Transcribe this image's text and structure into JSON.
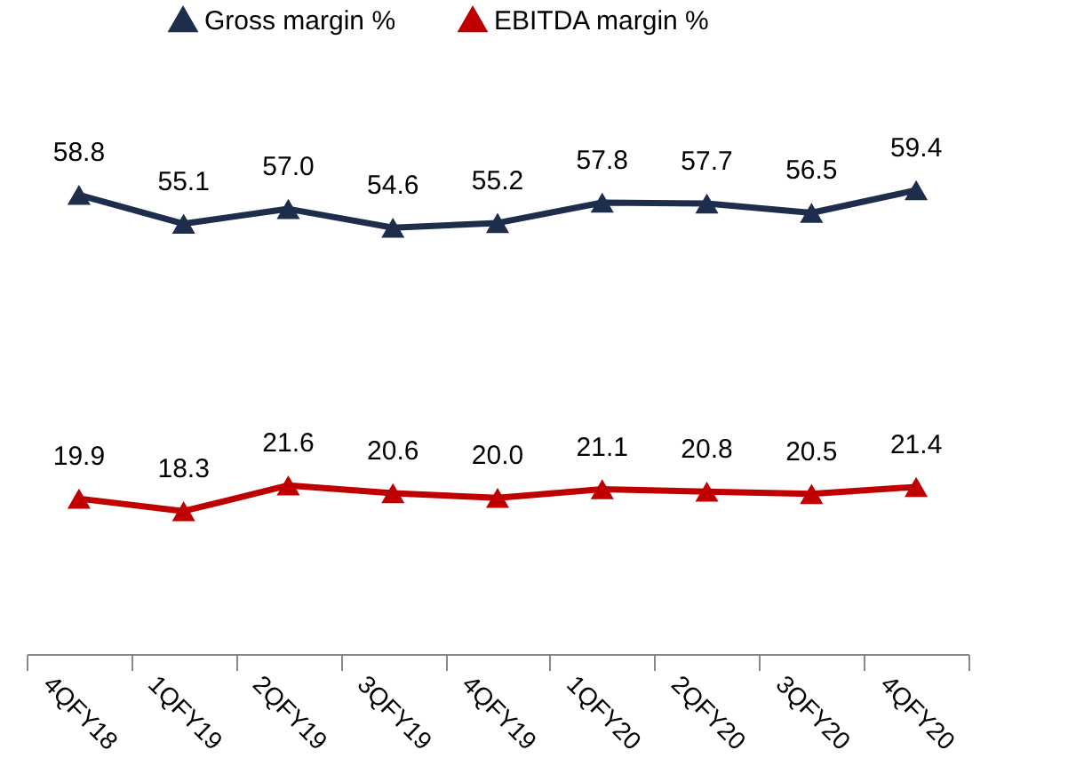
{
  "chart_data": {
    "type": "line",
    "categories": [
      "4QFY18",
      "1QFY19",
      "2QFY19",
      "3QFY19",
      "4QFY19",
      "1QFY20",
      "2QFY20",
      "3QFY20",
      "4QFY20"
    ],
    "series": [
      {
        "name": "Gross margin %",
        "color": "#1f2d4d",
        "values": [
          58.8,
          55.1,
          57.0,
          54.6,
          55.2,
          57.8,
          57.7,
          56.5,
          59.4
        ],
        "value_labels": [
          "58.8",
          "55.1",
          "57.0",
          "54.6",
          "55.2",
          "57.8",
          "57.7",
          "56.5",
          "59.4"
        ]
      },
      {
        "name": "EBITDA margin %",
        "color": "#c00000",
        "values": [
          19.9,
          18.3,
          21.6,
          20.6,
          20.0,
          21.1,
          20.8,
          20.5,
          21.4
        ],
        "value_labels": [
          "19.9",
          "18.3",
          "21.6",
          "20.6",
          "20.0",
          "21.1",
          "20.8",
          "20.5",
          "21.4"
        ]
      }
    ],
    "legend": "top",
    "marker": "triangle",
    "line_style": "solid",
    "grid": false
  }
}
